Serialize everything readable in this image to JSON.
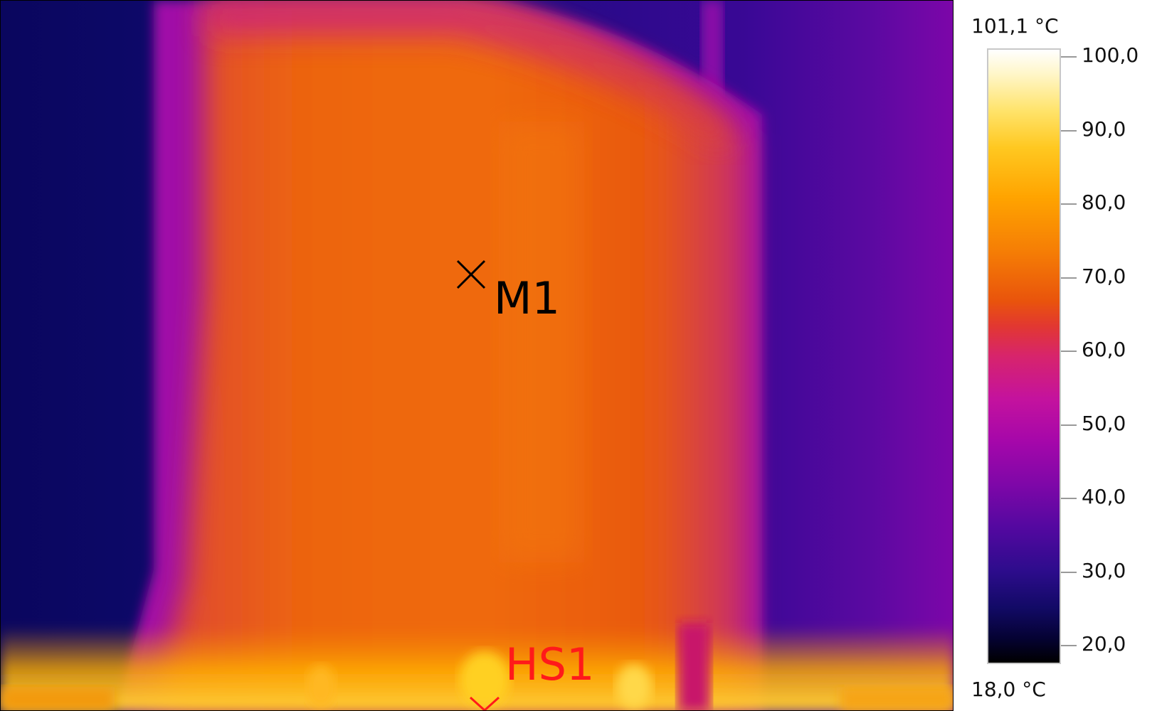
{
  "markers": {
    "m1": "M1",
    "hs1": "HS1"
  },
  "scale": {
    "max_label": "101,1 °C",
    "min_label": "18,0 °C",
    "ticks": [
      "100,0",
      "90,0",
      "80,0",
      "70,0",
      "60,0",
      "50,0",
      "40,0",
      "30,0",
      "20,0"
    ]
  },
  "colors": {
    "marker_m1": "#000000",
    "marker_hs1": "#ff1a1a"
  }
}
